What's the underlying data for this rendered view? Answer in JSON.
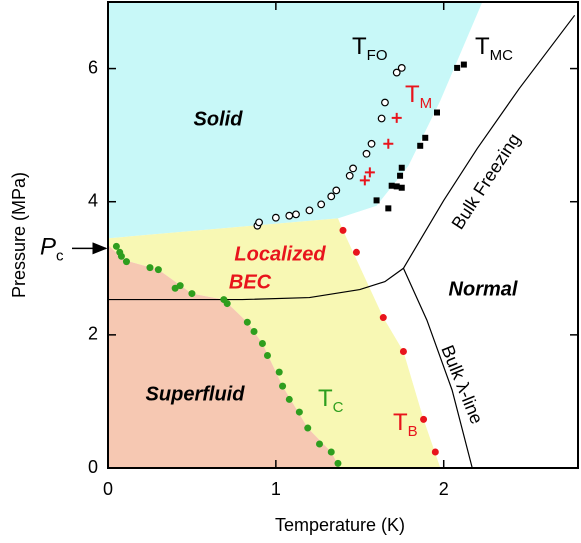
{
  "chart_data": {
    "type": "scatter",
    "xlabel": "Temperature (K)",
    "ylabel": "Pressure (MPa)",
    "xlim": [
      0,
      2.8
    ],
    "ylim": [
      0,
      7
    ],
    "xticks": [
      0,
      1,
      2
    ],
    "yticks": [
      0,
      2,
      4,
      6
    ],
    "series": [
      {
        "name": "T",
        "sub": "FO",
        "marker": "open-circle",
        "color": "#000000",
        "x": [
          0.89,
          0.9,
          1.0,
          1.08,
          1.12,
          1.2,
          1.27,
          1.33,
          1.36,
          1.44,
          1.46,
          1.54,
          1.57,
          1.63,
          1.65,
          1.72,
          1.75
        ],
        "y": [
          3.64,
          3.69,
          3.76,
          3.79,
          3.81,
          3.87,
          3.96,
          4.08,
          4.17,
          4.39,
          4.5,
          4.72,
          4.87,
          5.25,
          5.49,
          5.94,
          6.01
        ]
      },
      {
        "name": "T",
        "sub": "MC",
        "marker": "square",
        "color": "#000000",
        "x": [
          1.6,
          1.67,
          1.69,
          1.72,
          1.75,
          1.74,
          1.75,
          1.86,
          1.89,
          1.96,
          2.08,
          2.12
        ],
        "y": [
          4.02,
          3.9,
          4.24,
          4.23,
          4.21,
          4.39,
          4.51,
          4.84,
          4.96,
          5.34,
          6.01,
          6.06
        ]
      },
      {
        "name": "T",
        "sub": "M",
        "marker": "plus",
        "color": "#e8141c",
        "x": [
          1.53,
          1.56,
          1.67,
          1.72
        ],
        "y": [
          4.32,
          4.44,
          4.87,
          5.26
        ]
      },
      {
        "name": "T",
        "sub": "C",
        "marker": "dot",
        "color": "#2e9e1e",
        "x": [
          0.05,
          0.07,
          0.08,
          0.11,
          0.25,
          0.3,
          0.4,
          0.43,
          0.5,
          0.69,
          0.71,
          0.83,
          0.87,
          0.92,
          0.95,
          1.02,
          1.04,
          1.08,
          1.14,
          1.19,
          1.26,
          1.33,
          1.37
        ],
        "y": [
          3.33,
          3.24,
          3.18,
          3.1,
          3.01,
          2.98,
          2.7,
          2.74,
          2.62,
          2.53,
          2.47,
          2.19,
          2.05,
          1.87,
          1.69,
          1.44,
          1.23,
          1.03,
          0.84,
          0.6,
          0.36,
          0.24,
          0.07
        ]
      },
      {
        "name": "T",
        "sub": "B",
        "marker": "dot",
        "color": "#e8141c",
        "x": [
          1.4,
          1.48,
          1.64,
          1.76,
          1.88,
          1.95
        ],
        "y": [
          3.57,
          3.24,
          2.26,
          1.75,
          0.73,
          0.24
        ]
      }
    ],
    "regions": [
      {
        "label": [
          "Solid"
        ],
        "color": "#c8f8f8",
        "text_color": "#000000",
        "x": [
          0,
          2.23,
          1.98,
          1.79,
          1.6,
          1.37,
          0
        ],
        "y": [
          7,
          7,
          5.52,
          4.54,
          3.94,
          3.75,
          3.45
        ]
      },
      {
        "label": [
          "Localized",
          "BEC"
        ],
        "color": "#f8f8b4",
        "text_color": "#e8141c",
        "x": [
          0,
          1.37,
          1.4,
          1.64,
          1.76,
          1.88,
          1.98,
          1.38,
          1.33,
          1.19,
          1.04,
          0.92,
          0.83,
          0.69,
          0.5,
          0.3,
          0.1,
          0
        ],
        "y": [
          3.45,
          3.75,
          3.57,
          2.26,
          1.75,
          0.73,
          0,
          0,
          0.24,
          0.6,
          1.23,
          1.87,
          2.19,
          2.53,
          2.62,
          2.98,
          3.12,
          3.35
        ]
      },
      {
        "label": [
          "Superfluid"
        ],
        "color": "#f6c8b2",
        "text_color": "#000000",
        "x": [
          0,
          1.38,
          1.33,
          1.19,
          1.04,
          0.92,
          0.83,
          0.69,
          0.5,
          0.3,
          0.1,
          0
        ],
        "y": [
          0,
          0,
          0.24,
          0.6,
          1.23,
          1.87,
          2.19,
          2.53,
          2.62,
          2.98,
          3.12,
          3.35
        ]
      },
      {
        "label": [
          "Normal"
        ],
        "color": "#ffffff",
        "text_color": "#000000",
        "x": [],
        "y": []
      }
    ],
    "lines": [
      {
        "label": "Bulk Freezing",
        "x": [
          0,
          0.8,
          1.2,
          1.5,
          1.65,
          1.76,
          2.0,
          2.2,
          2.45,
          2.78
        ],
        "y": [
          2.53,
          2.53,
          2.56,
          2.68,
          2.8,
          3.0,
          4.02,
          4.8,
          5.7,
          6.8
        ]
      },
      {
        "label": "Bulk λ-line",
        "x": [
          1.76,
          1.9,
          2.05,
          2.17
        ],
        "y": [
          3.0,
          2.22,
          1.17,
          0
        ]
      }
    ],
    "pc": {
      "name": "P",
      "sub": "c",
      "y": 3.3
    }
  }
}
